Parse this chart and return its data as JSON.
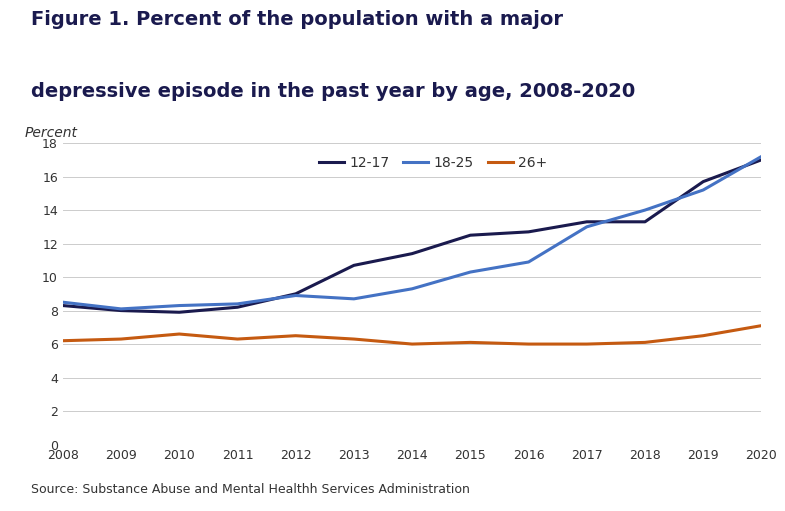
{
  "title_line1": "Figure 1. Percent of the population with a major",
  "title_line2": "depressive episode in the past year by age, 2008-2020",
  "ylabel": "Percent",
  "source": "Source: Substance Abuse and Mental Healthh Services Administration",
  "years": [
    2008,
    2009,
    2010,
    2011,
    2012,
    2013,
    2014,
    2015,
    2016,
    2017,
    2018,
    2019,
    2020
  ],
  "series_order": [
    "12-17",
    "18-25",
    "26+"
  ],
  "series": {
    "12-17": {
      "values": [
        8.3,
        8.0,
        7.9,
        8.2,
        9.0,
        10.7,
        11.4,
        12.5,
        12.7,
        13.3,
        13.3,
        15.7,
        17.0
      ],
      "color": "#1a1a4e",
      "linewidth": 2.2,
      "label": "12-17"
    },
    "18-25": {
      "values": [
        8.5,
        8.1,
        8.3,
        8.4,
        8.9,
        8.7,
        9.3,
        10.3,
        10.9,
        13.0,
        14.0,
        15.2,
        17.2
      ],
      "color": "#4472c4",
      "linewidth": 2.2,
      "label": "18-25"
    },
    "26+": {
      "values": [
        6.2,
        6.3,
        6.6,
        6.3,
        6.5,
        6.3,
        6.0,
        6.1,
        6.0,
        6.0,
        6.1,
        6.5,
        7.1
      ],
      "color": "#c55a11",
      "linewidth": 2.2,
      "label": "26+"
    }
  },
  "ylim": [
    0,
    18
  ],
  "yticks": [
    0,
    2,
    4,
    6,
    8,
    10,
    12,
    14,
    16,
    18
  ],
  "background_color": "#ffffff",
  "title_color": "#1a1a4e",
  "title_fontsize": 14,
  "legend_fontsize": 10,
  "axis_fontsize": 9,
  "source_fontsize": 9,
  "tick_label_color": "#333333",
  "legend_text_color": "#333333",
  "grid_color": "#cccccc"
}
